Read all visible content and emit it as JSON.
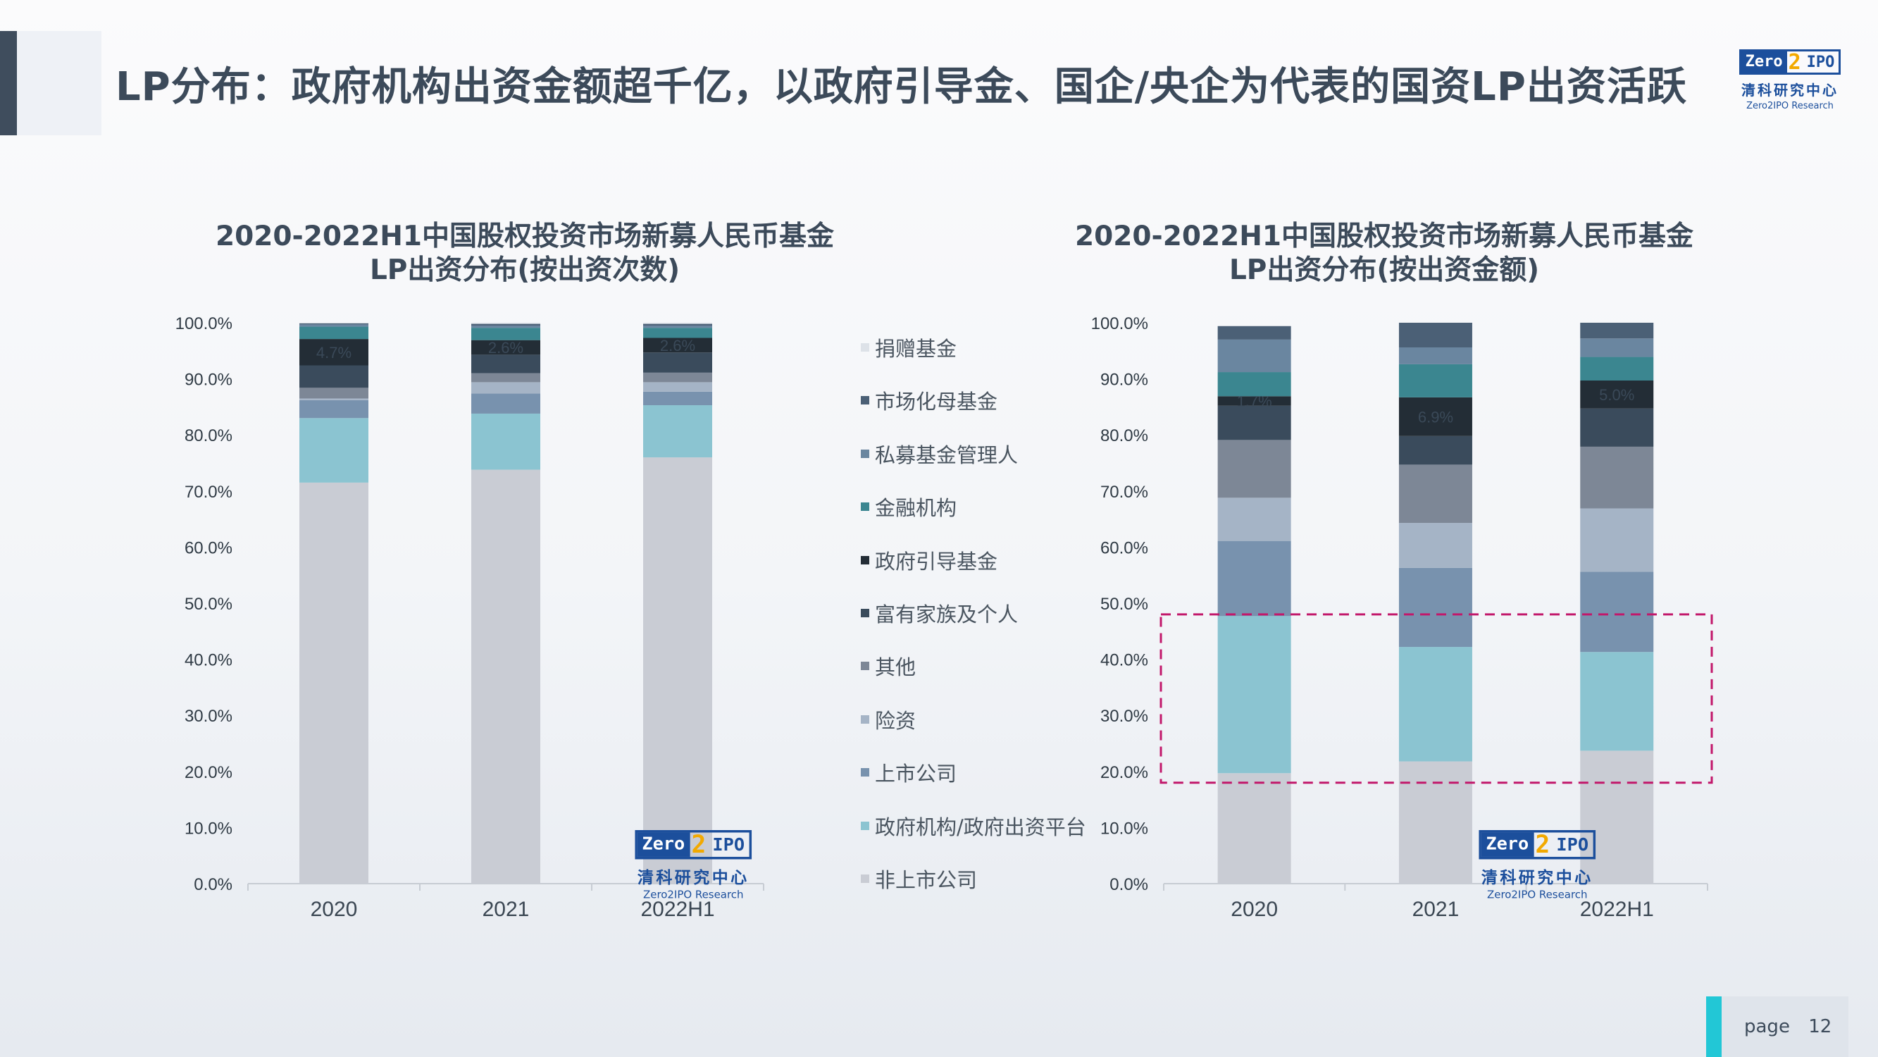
{
  "header": {
    "title": "LP分布：政府机构出资金额超千亿，以政府引导金、国企/央企为代表的国资LP出资活跃",
    "logo": {
      "box_left": "Zero",
      "box_two": "2",
      "box_right": "IPO",
      "cn": "清科研究中心",
      "en": "Zero2IPO Research"
    }
  },
  "footer": {
    "page_label": "page",
    "page_number": "12"
  },
  "legend": {
    "items": [
      {
        "name": "捐赠基金",
        "color": "#dde2e8"
      },
      {
        "name": "市场化母基金",
        "color": "#4b6076"
      },
      {
        "name": "私募基金管理人",
        "color": "#6a86a0"
      },
      {
        "name": "金融机构",
        "color": "#3b8690"
      },
      {
        "name": "政府引导基金",
        "color": "#232d36"
      },
      {
        "name": "富有家族及个人",
        "color": "#3a4b5c"
      },
      {
        "name": "其他",
        "color": "#7d8796"
      },
      {
        "name": "险资",
        "color": "#a5b4c6"
      },
      {
        "name": "上市公司",
        "color": "#7892ae"
      },
      {
        "name": "政府机构/政府出资平台",
        "color": "#8bc4d1"
      },
      {
        "name": "非上市公司",
        "color": "#c9ccd4"
      }
    ]
  },
  "chart_data": [
    {
      "type": "bar",
      "stacked": true,
      "title": "2020-2022H1中国股权投资市场新募人民币基金\nLP出资分布(按出资次数)",
      "categories": [
        "2020",
        "2021",
        "2022H1"
      ],
      "ylim": [
        0,
        100
      ],
      "yticks": [
        "0.0%",
        "10.0%",
        "20.0%",
        "30.0%",
        "40.0%",
        "50.0%",
        "60.0%",
        "70.0%",
        "80.0%",
        "90.0%",
        "100.0%"
      ],
      "series": [
        {
          "name": "非上市公司",
          "values": [
            71.5,
            73.8,
            76.0
          ]
        },
        {
          "name": "政府机构/政府出资平台",
          "values": [
            11.5,
            10.0,
            9.3
          ]
        },
        {
          "name": "上市公司",
          "values": [
            3.2,
            3.6,
            2.4
          ]
        },
        {
          "name": "险资",
          "values": [
            0.3,
            2.0,
            1.7
          ]
        },
        {
          "name": "其他",
          "values": [
            1.9,
            1.6,
            1.7
          ]
        },
        {
          "name": "富有家族及个人",
          "values": [
            4.0,
            3.3,
            3.6
          ]
        },
        {
          "name": "政府引导基金",
          "values": [
            4.7,
            2.6,
            2.6
          ]
        },
        {
          "name": "金融机构",
          "values": [
            2.2,
            2.2,
            1.8
          ]
        },
        {
          "name": "私募基金管理人",
          "values": [
            0.4,
            0.4,
            0.4
          ]
        },
        {
          "name": "市场化母基金",
          "values": [
            0.2,
            0.3,
            0.3
          ]
        },
        {
          "name": "捐赠基金",
          "values": [
            0.1,
            0.2,
            0.2
          ]
        }
      ],
      "data_labels": [
        {
          "category": "2020",
          "series": "政府引导基金",
          "text": "4.7%"
        },
        {
          "category": "2021",
          "series": "政府引导基金",
          "text": "2.6%"
        },
        {
          "category": "2022H1",
          "series": "政府引导基金",
          "text": "2.6%"
        }
      ]
    },
    {
      "type": "bar",
      "stacked": true,
      "title": "2020-2022H1中国股权投资市场新募人民币基金\nLP出资分布(按出资金额)",
      "categories": [
        "2020",
        "2021",
        "2022H1"
      ],
      "ylim": [
        0,
        100
      ],
      "yticks": [
        "0.0%",
        "10.0%",
        "20.0%",
        "30.0%",
        "40.0%",
        "50.0%",
        "60.0%",
        "70.0%",
        "80.0%",
        "90.0%",
        "100.0%"
      ],
      "series": [
        {
          "name": "非上市公司",
          "values": [
            19.7,
            21.8,
            23.7
          ]
        },
        {
          "name": "政府机构/政府出资平台",
          "values": [
            28.0,
            20.4,
            17.6
          ]
        },
        {
          "name": "上市公司",
          "values": [
            13.4,
            14.1,
            14.3
          ]
        },
        {
          "name": "险资",
          "values": [
            7.7,
            8.0,
            11.3
          ]
        },
        {
          "name": "其他",
          "values": [
            10.3,
            10.4,
            11.0
          ]
        },
        {
          "name": "富有家族及个人",
          "values": [
            6.1,
            5.1,
            6.8
          ]
        },
        {
          "name": "政府引导基金",
          "values": [
            1.7,
            6.9,
            5.0
          ]
        },
        {
          "name": "金融机构",
          "values": [
            4.3,
            5.9,
            4.2
          ]
        },
        {
          "name": "私募基金管理人",
          "values": [
            5.8,
            3.0,
            3.3
          ]
        },
        {
          "name": "市场化母基金",
          "values": [
            2.4,
            4.4,
            2.8
          ]
        },
        {
          "name": "捐赠基金",
          "values": [
            0.0,
            0.0,
            0.0
          ]
        }
      ],
      "data_labels": [
        {
          "category": "2020",
          "series": "政府引导基金",
          "text": "1.7%"
        },
        {
          "category": "2021",
          "series": "政府引导基金",
          "text": "6.9%"
        },
        {
          "category": "2022H1",
          "series": "政府引导基金",
          "text": "5.0%"
        }
      ],
      "highlight": {
        "y_from": 18,
        "y_to": 48
      }
    }
  ]
}
